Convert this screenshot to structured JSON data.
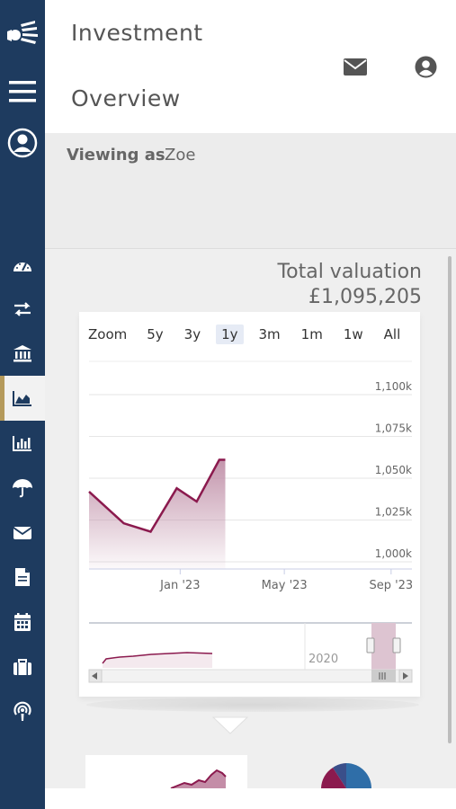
{
  "header": {
    "title_line1": "Investment",
    "title_line2": "Overview",
    "icons": [
      "envelope-icon",
      "account-circle-icon"
    ]
  },
  "sidebar": {
    "items": [
      {
        "name": "logo",
        "active": false
      },
      {
        "name": "menu-icon",
        "active": false
      },
      {
        "name": "profile-icon",
        "active": false
      },
      {
        "name": "dashboard-icon",
        "active": false
      },
      {
        "name": "transfer-icon",
        "active": false
      },
      {
        "name": "bank-icon",
        "active": false
      },
      {
        "name": "area-chart-icon",
        "active": true
      },
      {
        "name": "bar-chart-icon",
        "active": false
      },
      {
        "name": "umbrella-icon",
        "active": false
      },
      {
        "name": "envelope-icon",
        "active": false
      },
      {
        "name": "document-icon",
        "active": false
      },
      {
        "name": "calendar-icon",
        "active": false
      },
      {
        "name": "briefcase-icon",
        "active": false
      },
      {
        "name": "podcast-icon",
        "active": false
      }
    ]
  },
  "viewing": {
    "label": "Viewing as",
    "user": "Zoe"
  },
  "valuation": {
    "label": "Total valuation",
    "value": "£1,095,205"
  },
  "zoom": {
    "label": "Zoom",
    "options": [
      "5y",
      "3y",
      "1y",
      "3m",
      "1m",
      "1w",
      "All"
    ],
    "selected": "1y"
  },
  "chart_data": {
    "type": "area",
    "x": [
      "2022-09-18",
      "2022-10-28",
      "2022-11-28",
      "2022-12-28",
      "2023-01-20",
      "2023-02-15",
      "2023-02-22"
    ],
    "values": [
      1042,
      1023,
      1018,
      1044,
      1036,
      1061,
      1061
    ],
    "series": [
      {
        "name": "",
        "values": [
          1042,
          1023,
          1018,
          1044,
          1036,
          1061,
          1061
        ]
      }
    ],
    "xticks": [
      "Jan '23",
      "May '23",
      "Sep '23"
    ],
    "ytick_values": [
      1000,
      1025,
      1050,
      1075,
      1100
    ],
    "yticks": [
      "1,000k",
      "1,025k",
      "1,050k",
      "1,075k",
      "1,100k"
    ],
    "ylim": [
      1000,
      1100
    ],
    "ylabel": "",
    "xlabel": "",
    "grid": true,
    "line_color": "#8b1a4e",
    "fill_color": "#c9a0b4",
    "navigator": {
      "label": "2020"
    }
  },
  "colors": {
    "sidebar": "#1e3b5f",
    "accent": "#b59a5b",
    "series": "#8b1a4e"
  }
}
